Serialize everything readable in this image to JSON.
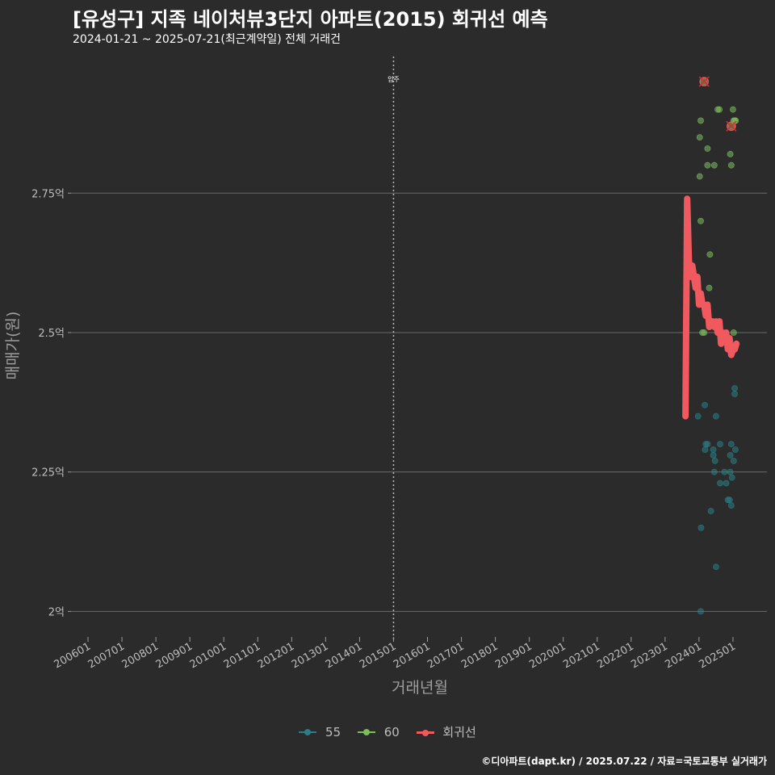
{
  "title": "[유성구] 지족 네이처뷰3단지 아파트(2015) 회귀선 예측",
  "subtitle": "2024-01-21 ~ 2025-07-21(최근계약일) 전체 거래건",
  "caption": "©디아파트(dapt.kr) / 2025.07.22 / 자료=국토교통부 실거래가",
  "colors": {
    "s55": "#2a7f86",
    "s60": "#7cbd5c",
    "regression": "#f05a5f",
    "grid": "#6a6a6a",
    "text": "#bdbdbd"
  },
  "chart_data": {
    "type": "scatter",
    "xlabel": "거래년월",
    "ylabel": "매매가(원)",
    "x_unit": "year (decimal)",
    "y_unit": "억",
    "xlim": [
      2005.5,
      2026.0
    ],
    "ylim": [
      1.96,
      2.995
    ],
    "x_ticks": [
      {
        "x": 2006.0,
        "label": "200601"
      },
      {
        "x": 2007.0,
        "label": "200701"
      },
      {
        "x": 2008.0,
        "label": "200801"
      },
      {
        "x": 2009.0,
        "label": "200901"
      },
      {
        "x": 2010.0,
        "label": "201001"
      },
      {
        "x": 2011.0,
        "label": "201101"
      },
      {
        "x": 2012.0,
        "label": "201201"
      },
      {
        "x": 2013.0,
        "label": "201301"
      },
      {
        "x": 2014.0,
        "label": "201401"
      },
      {
        "x": 2015.0,
        "label": "201501"
      },
      {
        "x": 2016.0,
        "label": "201601"
      },
      {
        "x": 2017.0,
        "label": "201701"
      },
      {
        "x": 2018.0,
        "label": "201801"
      },
      {
        "x": 2019.0,
        "label": "201901"
      },
      {
        "x": 2020.0,
        "label": "202001"
      },
      {
        "x": 2021.0,
        "label": "202101"
      },
      {
        "x": 2022.0,
        "label": "202201"
      },
      {
        "x": 2023.0,
        "label": "202301"
      },
      {
        "x": 2024.0,
        "label": "202401"
      },
      {
        "x": 2025.0,
        "label": "202501"
      }
    ],
    "y_ticks": [
      {
        "y": 2.0,
        "label": "2억"
      },
      {
        "y": 2.25,
        "label": "2.25억"
      },
      {
        "y": 2.5,
        "label": "2.5억"
      },
      {
        "y": 2.75,
        "label": "2.75억"
      }
    ],
    "vline": {
      "x": 2015.0,
      "label": "입주"
    },
    "series": [
      {
        "name": "55",
        "points": [
          [
            2023.97,
            2.35
          ],
          [
            2024.05,
            2.0
          ],
          [
            2024.06,
            2.15
          ],
          [
            2024.17,
            2.37
          ],
          [
            2024.18,
            2.29
          ],
          [
            2024.2,
            2.3
          ],
          [
            2024.25,
            2.3
          ],
          [
            2024.35,
            2.18
          ],
          [
            2024.42,
            2.29
          ],
          [
            2024.42,
            2.28
          ],
          [
            2024.45,
            2.25
          ],
          [
            2024.47,
            2.27
          ],
          [
            2024.5,
            2.35
          ],
          [
            2024.5,
            2.08
          ],
          [
            2024.62,
            2.3
          ],
          [
            2024.62,
            2.23
          ],
          [
            2024.75,
            2.25
          ],
          [
            2024.8,
            2.23
          ],
          [
            2024.85,
            2.2
          ],
          [
            2024.9,
            2.2
          ],
          [
            2024.92,
            2.25
          ],
          [
            2024.92,
            2.28
          ],
          [
            2024.95,
            2.3
          ],
          [
            2024.95,
            2.19
          ],
          [
            2024.97,
            2.24
          ],
          [
            2025.02,
            2.27
          ],
          [
            2025.05,
            2.4
          ],
          [
            2025.05,
            2.39
          ],
          [
            2025.07,
            2.29
          ]
        ]
      },
      {
        "name": "60",
        "points": [
          [
            2024.02,
            2.78
          ],
          [
            2024.02,
            2.85
          ],
          [
            2024.05,
            2.88
          ],
          [
            2024.05,
            2.7
          ],
          [
            2024.1,
            2.5
          ],
          [
            2024.15,
            2.95
          ],
          [
            2024.15,
            2.5
          ],
          [
            2024.25,
            2.83
          ],
          [
            2024.25,
            2.8
          ],
          [
            2024.3,
            2.58
          ],
          [
            2024.32,
            2.64
          ],
          [
            2024.45,
            2.8
          ],
          [
            2024.55,
            2.9
          ],
          [
            2024.6,
            2.9
          ],
          [
            2024.92,
            2.82
          ],
          [
            2024.95,
            2.8
          ],
          [
            2025.0,
            2.9
          ],
          [
            2025.02,
            2.88
          ],
          [
            2025.05,
            2.88
          ],
          [
            2025.08,
            2.88
          ],
          [
            2024.95,
            2.87
          ],
          [
            2025.02,
            2.5
          ]
        ]
      }
    ],
    "highlighted": [
      [
        2024.15,
        2.95
      ],
      [
        2024.95,
        2.87
      ]
    ],
    "regression": {
      "name": "회귀선",
      "points": [
        [
          2023.6,
          2.35
        ],
        [
          2023.65,
          2.74
        ],
        [
          2023.7,
          2.63
        ],
        [
          2023.75,
          2.6
        ],
        [
          2023.8,
          2.62
        ],
        [
          2023.85,
          2.6
        ],
        [
          2023.9,
          2.58
        ],
        [
          2023.95,
          2.6
        ],
        [
          2024.0,
          2.55
        ],
        [
          2024.05,
          2.57
        ],
        [
          2024.1,
          2.55
        ],
        [
          2024.15,
          2.55
        ],
        [
          2024.2,
          2.53
        ],
        [
          2024.25,
          2.55
        ],
        [
          2024.3,
          2.51
        ],
        [
          2024.35,
          2.52
        ],
        [
          2024.4,
          2.52
        ],
        [
          2024.45,
          2.51
        ],
        [
          2024.5,
          2.52
        ],
        [
          2024.55,
          2.5
        ],
        [
          2024.6,
          2.52
        ],
        [
          2024.65,
          2.48
        ],
        [
          2024.7,
          2.5
        ],
        [
          2024.75,
          2.49
        ],
        [
          2024.8,
          2.5
        ],
        [
          2024.85,
          2.47
        ],
        [
          2024.9,
          2.49
        ],
        [
          2024.95,
          2.46
        ],
        [
          2025.0,
          2.47
        ],
        [
          2025.05,
          2.47
        ],
        [
          2025.1,
          2.48
        ]
      ]
    }
  }
}
